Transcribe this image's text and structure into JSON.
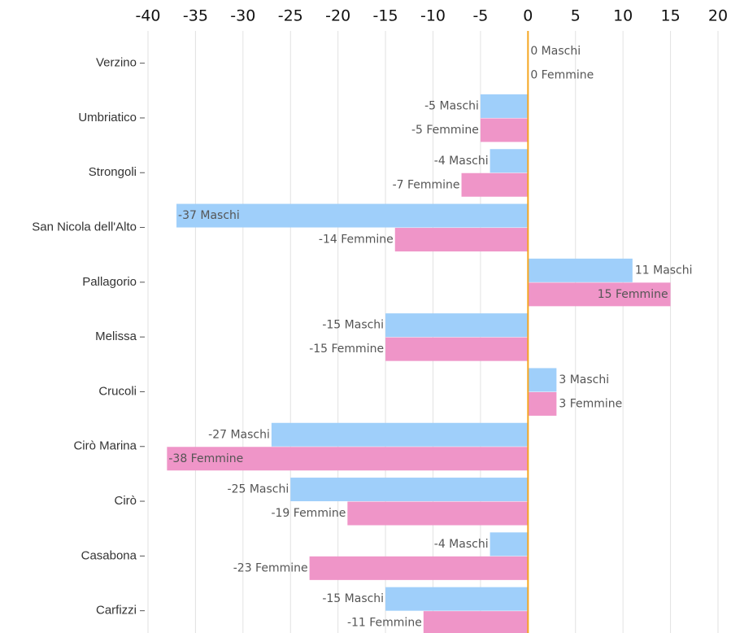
{
  "chart_data": {
    "type": "barh",
    "categories": [
      "Verzino",
      "Umbriatico",
      "Strongoli",
      "San Nicola dell'Alto",
      "Pallagorio",
      "Melissa",
      "Crucoli",
      "Cirò Marina",
      "Cirò",
      "Casabona",
      "Carfizzi"
    ],
    "series": [
      {
        "color": "#9fcffa",
        "values": [
          0,
          -5,
          -4,
          -37,
          11,
          -15,
          3,
          -27,
          -25,
          -4,
          -15
        ],
        "value_labels": [
          "0 Maschi",
          "-5 Maschi",
          "-4 Maschi",
          "-37 Maschi",
          "11 Maschi",
          "-15 Maschi",
          "3 Maschi",
          "-27 Maschi",
          "-25 Maschi",
          "-4 Maschi",
          "-15 Maschi"
        ]
      },
      {
        "color": "#ef95c8",
        "values": [
          0,
          -5,
          -7,
          -14,
          15,
          -15,
          3,
          -38,
          -19,
          -23,
          -11
        ],
        "value_labels": [
          "0 Femmine",
          "-5 Femmine",
          "-7 Femmine",
          "-14 Femmine",
          "15 Femmine",
          "-15 Femmine",
          "3 Femmine",
          "-38 Femmine",
          "-19 Femmine",
          "-23 Femmine",
          "-11 Femmine"
        ]
      }
    ],
    "xlim": [
      -40,
      20
    ],
    "xticks": [
      -40,
      -35,
      -30,
      -25,
      -20,
      -15,
      -10,
      -5,
      0,
      5,
      10,
      15,
      20
    ],
    "grid": true,
    "zero_line_color": "#f5a623"
  }
}
